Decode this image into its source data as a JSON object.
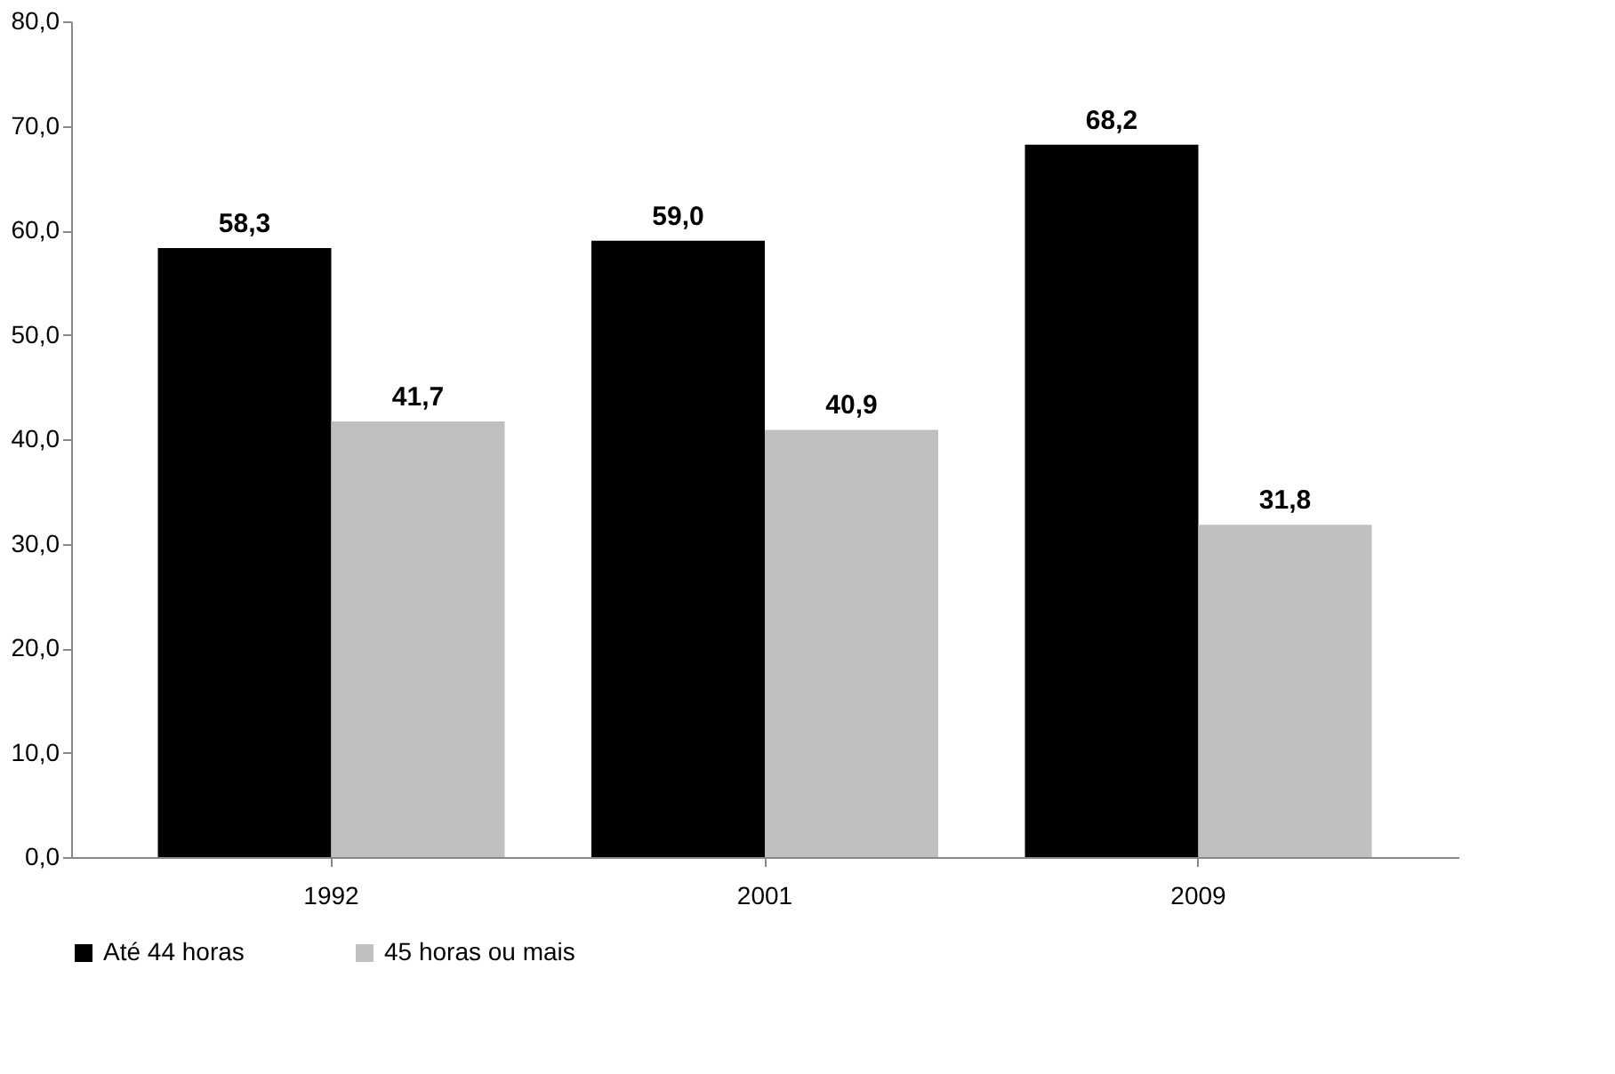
{
  "chart_data": {
    "type": "bar",
    "categories": [
      "1992",
      "2001",
      "2009"
    ],
    "series": [
      {
        "name": "Até 44 horas",
        "color": "#000000",
        "values": [
          58.3,
          59.0,
          68.2
        ],
        "value_labels": [
          "58,3",
          "59,0",
          "68,2"
        ]
      },
      {
        "name": "45 horas ou mais",
        "color": "#bfbfbf",
        "values": [
          41.7,
          40.9,
          31.8
        ],
        "value_labels": [
          "41,7",
          "40,9",
          "31,8"
        ]
      }
    ],
    "ylim": [
      0,
      80
    ],
    "yticks": [
      {
        "value": 0,
        "label": "0,0"
      },
      {
        "value": 10,
        "label": "10,0"
      },
      {
        "value": 20,
        "label": "20,0"
      },
      {
        "value": 30,
        "label": "30,0"
      },
      {
        "value": 40,
        "label": "40,0"
      },
      {
        "value": 50,
        "label": "50,0"
      },
      {
        "value": 60,
        "label": "60,0"
      },
      {
        "value": 70,
        "label": "70,0"
      },
      {
        "value": 80,
        "label": "80,0"
      }
    ],
    "grid": false,
    "legend": "bottom"
  }
}
